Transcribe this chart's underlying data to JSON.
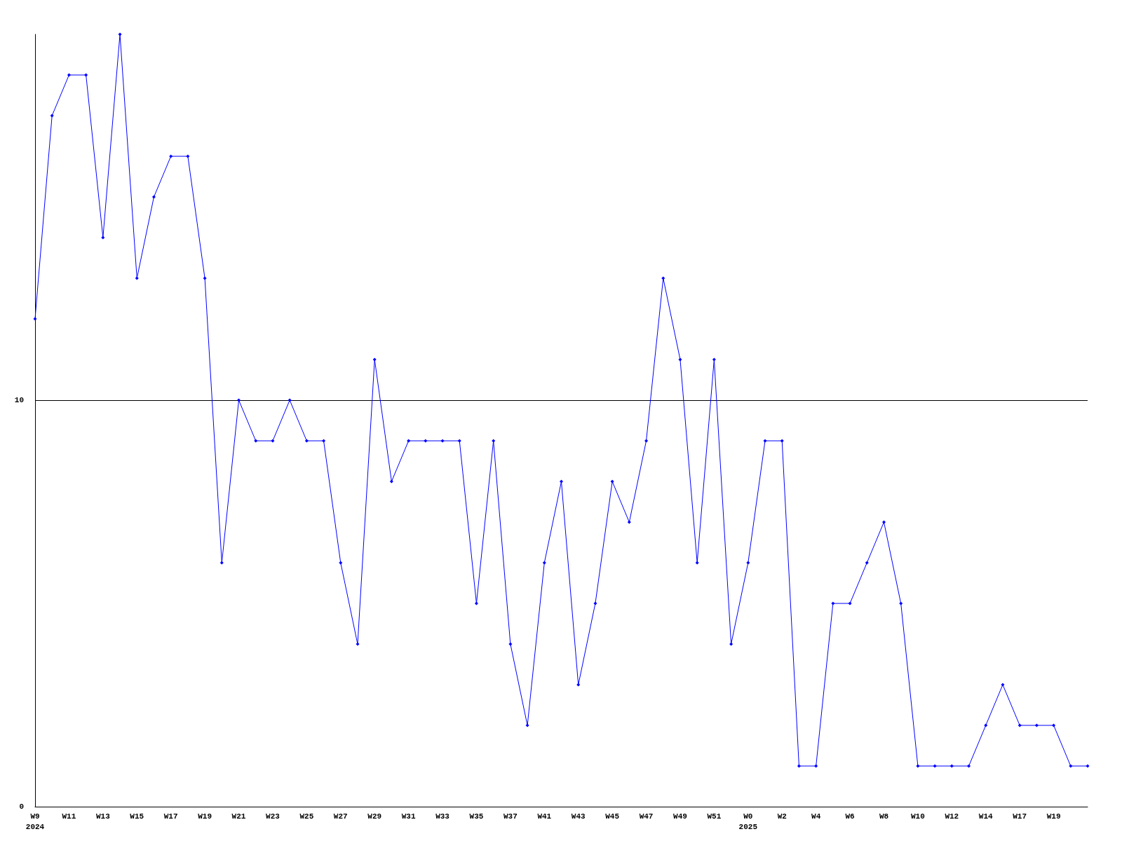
{
  "chart_data": {
    "type": "line",
    "categories": [
      "W9\n2024",
      null,
      "W11",
      null,
      "W13",
      null,
      "W15",
      null,
      "W17",
      null,
      "W19",
      null,
      "W21",
      null,
      "W23",
      null,
      "W25",
      null,
      "W27",
      null,
      "W29",
      null,
      "W31",
      null,
      "W33",
      null,
      "W35",
      null,
      "W37",
      null,
      "W41",
      null,
      "W43",
      null,
      "W45",
      null,
      "W47",
      null,
      "W49",
      null,
      "W51",
      null,
      "W0\n2025",
      null,
      "W2",
      null,
      "W4",
      null,
      "W6",
      null,
      "W8",
      null,
      "W10",
      null,
      "W12",
      null,
      "W14",
      null,
      "W17",
      null,
      "W19",
      null,
      null
    ],
    "series": [
      {
        "color": "#0000ff",
        "values": [
          12,
          17,
          18,
          18,
          14,
          19,
          13,
          15,
          16,
          16,
          13,
          6,
          10,
          9,
          9,
          10,
          9,
          9,
          6,
          4,
          11,
          8,
          9,
          9,
          9,
          9,
          5,
          9,
          4,
          2,
          6,
          8,
          3,
          5,
          8,
          7,
          9,
          13,
          11,
          6,
          11,
          4,
          6,
          9,
          9,
          1,
          1,
          5,
          5,
          6,
          7,
          5,
          1,
          1,
          1,
          1,
          2,
          3,
          2,
          2,
          2,
          1,
          1
        ]
      }
    ],
    "ylim": [
      0,
      19
    ],
    "yticks": [
      0,
      10
    ],
    "grid": "y",
    "marker": "diamond",
    "line_style": "solid"
  }
}
